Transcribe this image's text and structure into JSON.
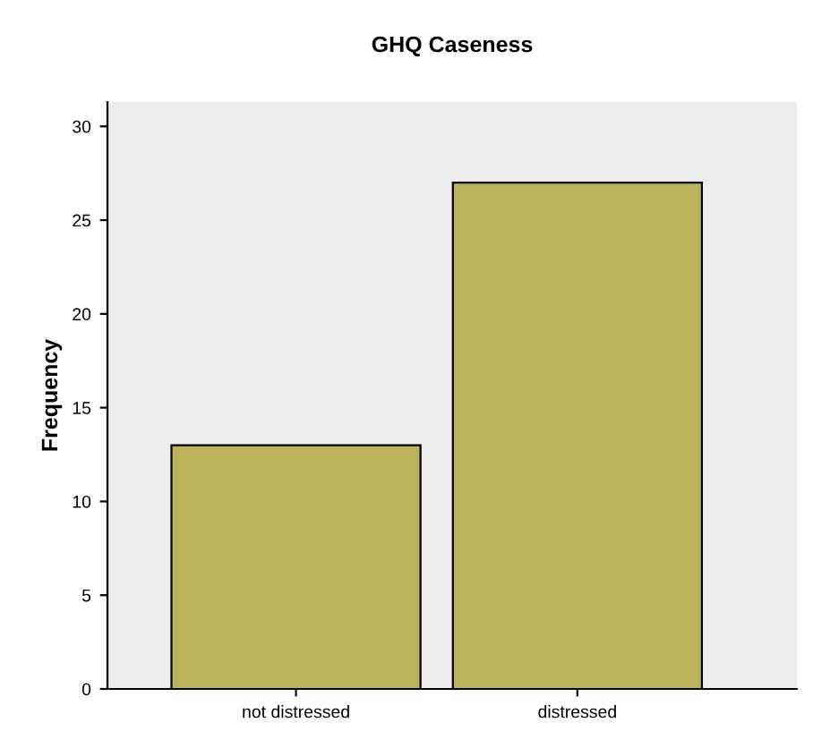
{
  "chart_data": {
    "type": "bar",
    "title": "GHQ Caseness",
    "ylabel": "Frequency",
    "categories": [
      "not distressed",
      "distressed"
    ],
    "values": [
      13,
      27
    ],
    "color": "#bcb45c",
    "ylim": [
      0,
      31.3
    ],
    "yticks": [
      0,
      5,
      10,
      15,
      20,
      25,
      30
    ],
    "grid": false
  }
}
